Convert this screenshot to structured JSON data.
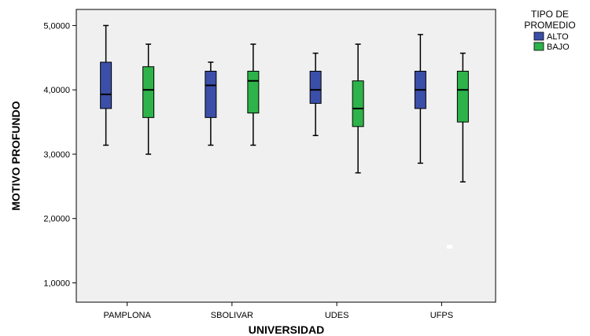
{
  "chart_data": {
    "type": "boxplot",
    "xlabel": "UNIVERSIDAD",
    "ylabel": "MOTIVO PROFUNDO",
    "categories": [
      "PAMPLONA",
      "SBOLIVAR",
      "UDES",
      "UFPS"
    ],
    "y_ticks": [
      "1,0000",
      "2,0000",
      "3,0000",
      "4,0000",
      "5,0000"
    ],
    "y_tick_values": [
      1,
      2,
      3,
      4,
      5
    ],
    "ylim": [
      0.7,
      5.25
    ],
    "legend": {
      "title": [
        "TIPO DE",
        "PROMEDIO"
      ],
      "placement": "top-right, outside plot"
    },
    "series": [
      {
        "name": "ALTO",
        "color": "#3b4fa8",
        "boxes": [
          {
            "min": 3.14,
            "q1": 3.71,
            "median": 3.93,
            "q3": 4.43,
            "max": 5.0
          },
          {
            "min": 3.14,
            "q1": 3.57,
            "median": 4.07,
            "q3": 4.29,
            "max": 4.43
          },
          {
            "min": 3.29,
            "q1": 3.79,
            "median": 4.0,
            "q3": 4.29,
            "max": 4.57
          },
          {
            "min": 2.86,
            "q1": 3.71,
            "median": 4.0,
            "q3": 4.29,
            "max": 4.86
          }
        ]
      },
      {
        "name": "BAJO",
        "color": "#2db34a",
        "boxes": [
          {
            "min": 3.0,
            "q1": 3.57,
            "median": 4.0,
            "q3": 4.36,
            "max": 4.71
          },
          {
            "min": 3.14,
            "q1": 3.64,
            "median": 4.14,
            "q3": 4.29,
            "max": 4.71
          },
          {
            "min": 2.71,
            "q1": 3.43,
            "median": 3.71,
            "q3": 4.14,
            "max": 4.71
          },
          {
            "min": 2.57,
            "q1": 3.5,
            "median": 4.0,
            "q3": 4.29,
            "max": 4.57
          }
        ]
      }
    ],
    "plot_background": "#f0f0f0",
    "grid": false
  }
}
